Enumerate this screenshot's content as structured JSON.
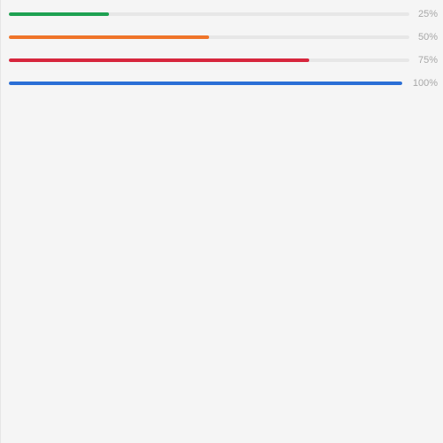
{
  "progress_bars": [
    {
      "value": 25,
      "label": "25%",
      "color": "#1ea152"
    },
    {
      "value": 50,
      "label": "50%",
      "color": "#ef7429"
    },
    {
      "value": 75,
      "label": "75%",
      "color": "#d7263d"
    },
    {
      "value": 100,
      "label": "100%",
      "color": "#2b6fd6"
    }
  ]
}
